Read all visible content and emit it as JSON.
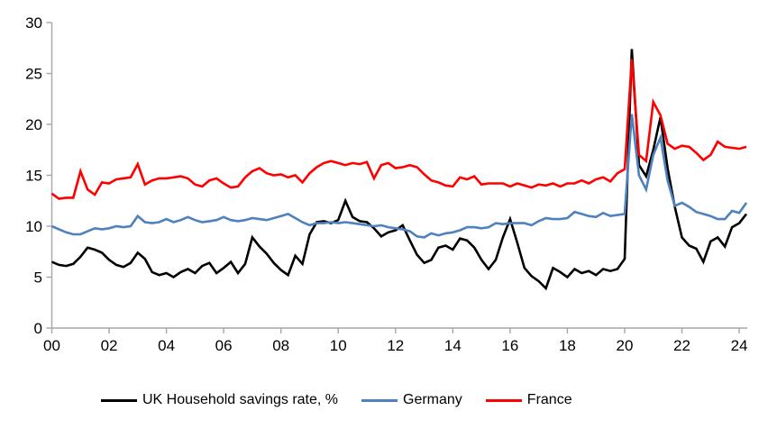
{
  "chart_data": {
    "type": "line",
    "title": "",
    "xlabel": "",
    "ylabel": "",
    "grid": "off",
    "legend_position": "bottom-center",
    "axis_color": "#a6a6a6",
    "tick_label_color": "#000000",
    "ylim": [
      0,
      30
    ],
    "yticks": [
      "0",
      "5",
      "10",
      "15",
      "20",
      "25",
      "30"
    ],
    "xtick_labels": [
      "00",
      "02",
      "04",
      "06",
      "08",
      "10",
      "12",
      "14",
      "16",
      "18",
      "20",
      "22",
      "24"
    ],
    "x_start_year": 2000,
    "x_step_years": 0.25,
    "x_end_year": 2024.25,
    "series": [
      {
        "name": "UK Household savings rate, %",
        "color": "#000000",
        "values": [
          6.5,
          6.2,
          6.1,
          6.3,
          7.0,
          7.9,
          7.7,
          7.4,
          6.7,
          6.2,
          6.0,
          6.4,
          7.4,
          6.8,
          5.5,
          5.2,
          5.4,
          5.0,
          5.5,
          5.8,
          5.4,
          6.1,
          6.4,
          5.4,
          5.9,
          6.5,
          5.4,
          6.3,
          8.9,
          8.0,
          7.3,
          6.4,
          5.7,
          5.2,
          7.1,
          6.3,
          9.2,
          10.4,
          10.5,
          10.3,
          10.6,
          12.5,
          10.9,
          10.5,
          10.4,
          9.8,
          9.0,
          9.4,
          9.6,
          10.1,
          8.6,
          7.2,
          6.4,
          6.7,
          7.9,
          8.1,
          7.7,
          8.8,
          8.6,
          7.9,
          6.7,
          5.8,
          6.7,
          8.9,
          10.7,
          8.4,
          5.9,
          5.1,
          4.6,
          3.9,
          5.9,
          5.5,
          5.0,
          5.8,
          5.4,
          5.6,
          5.2,
          5.8,
          5.6,
          5.8,
          6.8,
          27.4,
          16.0,
          14.9,
          17.5,
          20.7,
          15.7,
          11.9,
          8.9,
          8.1,
          7.8,
          6.5,
          8.5,
          8.9,
          8.0,
          9.9,
          10.3,
          11.2
        ]
      },
      {
        "name": "Germany",
        "color": "#4e81bd",
        "values": [
          10.0,
          9.7,
          9.4,
          9.2,
          9.2,
          9.5,
          9.8,
          9.7,
          9.8,
          10.0,
          9.9,
          10.0,
          11.0,
          10.4,
          10.3,
          10.4,
          10.7,
          10.4,
          10.6,
          10.9,
          10.6,
          10.4,
          10.5,
          10.6,
          10.9,
          10.6,
          10.5,
          10.6,
          10.8,
          10.7,
          10.6,
          10.8,
          11.0,
          11.2,
          10.8,
          10.4,
          10.1,
          10.3,
          10.3,
          10.4,
          10.3,
          10.4,
          10.3,
          10.2,
          10.1,
          10.0,
          10.1,
          9.9,
          9.8,
          9.7,
          9.5,
          9.0,
          8.9,
          9.3,
          9.1,
          9.3,
          9.4,
          9.6,
          9.9,
          9.9,
          9.8,
          9.9,
          10.3,
          10.2,
          10.3,
          10.3,
          10.3,
          10.1,
          10.5,
          10.8,
          10.7,
          10.7,
          10.8,
          11.4,
          11.2,
          11.0,
          10.9,
          11.3,
          11.0,
          11.1,
          11.2,
          21.0,
          15.0,
          13.6,
          17.0,
          18.7,
          14.5,
          12.0,
          12.3,
          11.9,
          11.4,
          11.2,
          11.0,
          10.7,
          10.7,
          11.5,
          11.3,
          12.3
        ]
      },
      {
        "name": "France",
        "color": "#ff0000",
        "values": [
          13.2,
          12.7,
          12.8,
          12.8,
          15.4,
          13.6,
          13.1,
          14.3,
          14.2,
          14.6,
          14.7,
          14.8,
          16.1,
          14.1,
          14.5,
          14.7,
          14.7,
          14.8,
          14.9,
          14.7,
          14.1,
          13.9,
          14.5,
          14.7,
          14.2,
          13.8,
          13.9,
          14.8,
          15.4,
          15.7,
          15.2,
          15.0,
          15.1,
          14.8,
          15.0,
          14.3,
          15.2,
          15.8,
          16.2,
          16.4,
          16.2,
          16.0,
          16.2,
          16.1,
          16.3,
          14.7,
          16.0,
          16.2,
          15.7,
          15.8,
          16.0,
          15.8,
          15.1,
          14.5,
          14.3,
          14.0,
          13.9,
          14.8,
          14.6,
          14.9,
          14.1,
          14.2,
          14.2,
          14.2,
          13.9,
          14.2,
          14.0,
          13.8,
          14.1,
          14.0,
          14.2,
          13.9,
          14.2,
          14.2,
          14.5,
          14.2,
          14.6,
          14.8,
          14.4,
          15.2,
          15.6,
          26.4,
          17.0,
          16.4,
          22.2,
          20.9,
          18.1,
          17.6,
          17.9,
          17.8,
          17.2,
          16.5,
          17.0,
          18.3,
          17.8,
          17.7,
          17.6,
          17.8
        ]
      }
    ]
  }
}
